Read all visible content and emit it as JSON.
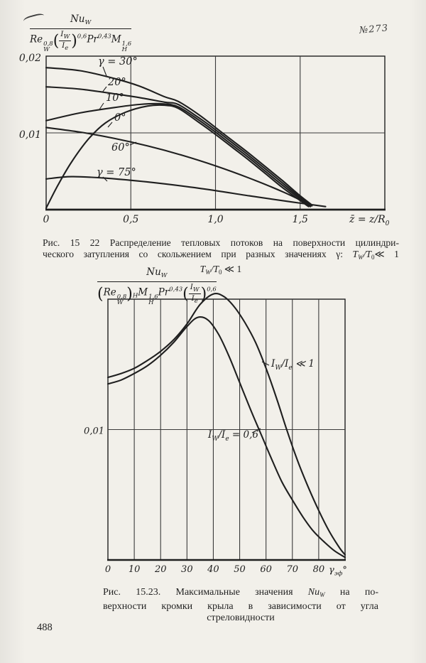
{
  "page": {
    "number": "488",
    "handwritten_annotation": "№273"
  },
  "formulas": {
    "f1": {
      "num_base": "Nu",
      "num_sub": "W",
      "den": {
        "re_base": "Re",
        "re_sup": "0,8",
        "re_sub": "W",
        "lp": "(",
        "frac_num_base": "I",
        "frac_num_sub": "W",
        "frac_den_base": "I",
        "frac_den_sub": "e",
        "rp": ")",
        "frac_sup": "0,6",
        "pr_base": "Pr",
        "pr_sup": "0,43",
        "m_base": "M",
        "m_sup": "1,6",
        "m_sub": "H"
      }
    },
    "f2": {
      "num_base": "Nu",
      "num_sub": "W",
      "den": {
        "lp": "(",
        "re_base": "Re",
        "re_sup": "0,8",
        "re_sub": "W",
        "rp": ")",
        "outer_sub": "H",
        "m_base": "M",
        "m_sup": "1,6",
        "m_sub": "H",
        "pr_base": "Pr",
        "pr_sup": "0,43",
        "lp2": "(",
        "frac_num_base": "I",
        "frac_num_sub": "W",
        "frac_den_base": "I",
        "frac_den_sub": "e",
        "rp2": ")",
        "frac_sup": "0,6"
      }
    }
  },
  "captions": {
    "fig1": {
      "lines": [
        {
          "parts": [
            {
              "t": "Рис. 15 22  Распределение тепловых потоков на поверхности цилиндри-"
            }
          ]
        },
        {
          "parts": [
            {
              "t": "ческого затупления со скольжением при разных значениях γ: "
            },
            {
              "t": "T",
              "i": true
            },
            {
              "t": "W",
              "sub": true,
              "i": true
            },
            {
              "t": "/",
              "i": true
            },
            {
              "t": "T",
              "i": true
            },
            {
              "t": "0",
              "sub": true
            },
            {
              "t": "≪ 1"
            }
          ]
        },
        {
          "parts": [
            {
              "t": "T",
              "i": true
            },
            {
              "t": "W",
              "sub": true,
              "i": true
            },
            {
              "t": "/",
              "i": true
            },
            {
              "t": "T",
              "i": true
            },
            {
              "t": "0",
              "sub": true
            },
            {
              "t": " ≪ 1"
            }
          ]
        }
      ]
    },
    "fig2": {
      "lines": [
        {
          "parts": [
            {
              "t": "Рис. 15.23. Максимальные  значения "
            },
            {
              "t": "Nu",
              "i": true
            },
            {
              "t": "W",
              "sub": true,
              "i": true
            },
            {
              "t": " на по-"
            }
          ]
        },
        {
          "parts": [
            {
              "t": "верхности кромки крыла в  зависимости  от угла"
            }
          ]
        },
        {
          "parts": [
            {
              "t": "стреловидности"
            }
          ]
        }
      ]
    }
  },
  "chart_data": [
    {
      "type": "line",
      "title": "Распределение тепловых потоков на поверхности цилиндрического затупления со скольжением при разных значениях γ",
      "ylabel_formula": "Nu_W / (Re_W^0,8 · (I_W/I_e)^0,6 · Pr^0,43 · M_H^1,6)",
      "xlabel_parts": [
        {
          "t": "z̄ = z/R"
        },
        {
          "t": "0",
          "sub": true
        }
      ],
      "xlim": [
        0,
        2.0
      ],
      "ylim": [
        0,
        0.02
      ],
      "grid": true,
      "grid_x": [
        0.5,
        1.0,
        1.5
      ],
      "grid_y": [
        0.01
      ],
      "xticks": [
        {
          "v": 0,
          "label": "0"
        },
        {
          "v": 0.5,
          "label": "0,5"
        },
        {
          "v": 1.0,
          "label": "1,0"
        },
        {
          "v": 1.5,
          "label": "1,5"
        }
      ],
      "yticks": [
        {
          "v": 0.02,
          "label": "0,02"
        },
        {
          "v": 0.01,
          "label": "0,01"
        }
      ],
      "legend": "labels on curves",
      "series": [
        {
          "name": "γ = 30°",
          "label_parts": [
            {
              "t": "γ = 30°"
            }
          ],
          "points": [
            [
              0,
              0.0185
            ],
            [
              0.2,
              0.0181
            ],
            [
              0.4,
              0.0171
            ],
            [
              0.55,
              0.0161
            ],
            [
              0.7,
              0.0147
            ],
            [
              0.78,
              0.0141
            ],
            [
              0.9,
              0.0124
            ],
            [
              1.0,
              0.0107
            ],
            [
              1.1,
              0.009
            ],
            [
              1.2,
              0.0073
            ],
            [
              1.3,
              0.0055
            ],
            [
              1.4,
              0.0037
            ],
            [
              1.5,
              0.0018
            ],
            [
              1.57,
              0.0006
            ]
          ]
        },
        {
          "name": "20°",
          "label_parts": [
            {
              "t": "20°"
            }
          ],
          "points": [
            [
              0,
              0.016
            ],
            [
              0.2,
              0.0157
            ],
            [
              0.4,
              0.0151
            ],
            [
              0.55,
              0.0146
            ],
            [
              0.7,
              0.014
            ],
            [
              0.78,
              0.0137
            ],
            [
              0.9,
              0.012
            ],
            [
              1.0,
              0.0104
            ],
            [
              1.1,
              0.0087
            ],
            [
              1.2,
              0.007
            ],
            [
              1.3,
              0.0052
            ],
            [
              1.4,
              0.0034
            ],
            [
              1.5,
              0.0016
            ],
            [
              1.565,
              0.0005
            ]
          ]
        },
        {
          "name": "10°",
          "label_parts": [
            {
              "t": "10°"
            }
          ],
          "points": [
            [
              0,
              0.0116
            ],
            [
              0.2,
              0.0126
            ],
            [
              0.4,
              0.0133
            ],
            [
              0.55,
              0.0137
            ],
            [
              0.68,
              0.0138
            ],
            [
              0.78,
              0.0134
            ],
            [
              0.9,
              0.0117
            ],
            [
              1.0,
              0.0101
            ],
            [
              1.1,
              0.0084
            ],
            [
              1.2,
              0.0067
            ],
            [
              1.3,
              0.0049
            ],
            [
              1.4,
              0.0031
            ],
            [
              1.5,
              0.0014
            ],
            [
              1.56,
              0.0004
            ]
          ]
        },
        {
          "name": "0°",
          "label_parts": [
            {
              "t": "0°"
            }
          ],
          "points": [
            [
              0,
              0.0002
            ],
            [
              0.07,
              0.0032
            ],
            [
              0.15,
              0.0062
            ],
            [
              0.25,
              0.0092
            ],
            [
              0.35,
              0.0113
            ],
            [
              0.47,
              0.0127
            ],
            [
              0.6,
              0.0135
            ],
            [
              0.7,
              0.0136
            ],
            [
              0.78,
              0.0132
            ],
            [
              0.9,
              0.0114
            ],
            [
              1.0,
              0.0098
            ],
            [
              1.1,
              0.0081
            ],
            [
              1.2,
              0.0064
            ],
            [
              1.3,
              0.0046
            ],
            [
              1.4,
              0.0028
            ],
            [
              1.55,
              0.0004
            ]
          ]
        },
        {
          "name": "60°",
          "label_parts": [
            {
              "t": "60°"
            }
          ],
          "points": [
            [
              0,
              0.0107
            ],
            [
              0.2,
              0.0101
            ],
            [
              0.4,
              0.0093
            ],
            [
              0.6,
              0.0083
            ],
            [
              0.8,
              0.0071
            ],
            [
              1.0,
              0.0057
            ],
            [
              1.2,
              0.0041
            ],
            [
              1.4,
              0.0023
            ],
            [
              1.57,
              0.0005
            ]
          ]
        },
        {
          "name": "γ = 75°",
          "label_parts": [
            {
              "t": "γ = 75°"
            }
          ],
          "points": [
            [
              0,
              0.004
            ],
            [
              0.15,
              0.0043
            ],
            [
              0.35,
              0.0041
            ],
            [
              0.6,
              0.0036
            ],
            [
              0.9,
              0.0028
            ],
            [
              1.2,
              0.0018
            ],
            [
              1.45,
              0.001
            ],
            [
              1.65,
              0.0004
            ]
          ]
        }
      ]
    },
    {
      "type": "line",
      "title": "Максимальные значения Nu_W на поверхности кромки крыла в зависимости от угла стреловидности",
      "ylabel_formula": "Nu_W / ((Re_W^0,8)_H · M_H^1,6 · Pr^0,43 · (I_W/I_e)^0,6)",
      "xlabel_parts": [
        {
          "t": "γ"
        },
        {
          "t": "эф",
          "sub": true
        },
        {
          "t": "°"
        }
      ],
      "xlim": [
        0,
        90
      ],
      "ylim": [
        0,
        0.02
      ],
      "grid": true,
      "grid_x": [
        10,
        20,
        30,
        40,
        50,
        60,
        70,
        80
      ],
      "grid_y": [
        0.01
      ],
      "xticks": [
        {
          "v": 0,
          "label": "0"
        },
        {
          "v": 10,
          "label": "10"
        },
        {
          "v": 20,
          "label": "20"
        },
        {
          "v": 30,
          "label": "30"
        },
        {
          "v": 40,
          "label": "40"
        },
        {
          "v": 50,
          "label": "50"
        },
        {
          "v": 60,
          "label": "60"
        },
        {
          "v": 70,
          "label": "70"
        },
        {
          "v": 80,
          "label": "80"
        }
      ],
      "yticks": [
        {
          "v": 0.01,
          "label": "0,01"
        }
      ],
      "legend": "labels on curves",
      "series": [
        {
          "name": "I_W/I_e ≪ 1",
          "label_parts": [
            {
              "t": "I"
            },
            {
              "t": "W",
              "sub": true
            },
            {
              "t": "/I"
            },
            {
              "t": "e",
              "sub": true
            },
            {
              "t": " ≪ 1"
            }
          ],
          "points": [
            [
              0,
              0.014
            ],
            [
              5,
              0.0143
            ],
            [
              10,
              0.0147
            ],
            [
              15,
              0.0153
            ],
            [
              20,
              0.016
            ],
            [
              25,
              0.0169
            ],
            [
              30,
              0.0181
            ],
            [
              35,
              0.0196
            ],
            [
              40,
              0.0204
            ],
            [
              44,
              0.0202
            ],
            [
              48,
              0.0194
            ],
            [
              52,
              0.0182
            ],
            [
              56,
              0.0167
            ],
            [
              60,
              0.0147
            ],
            [
              64,
              0.0124
            ],
            [
              68,
              0.0099
            ],
            [
              72,
              0.0076
            ],
            [
              76,
              0.0056
            ],
            [
              80,
              0.0038
            ],
            [
              84,
              0.0022
            ],
            [
              88,
              0.0009
            ],
            [
              90,
              0.0004
            ]
          ]
        },
        {
          "name": "I_W/I_e = 0,6",
          "label_parts": [
            {
              "t": "I"
            },
            {
              "t": "W",
              "sub": true
            },
            {
              "t": "/I"
            },
            {
              "t": "e",
              "sub": true
            },
            {
              "t": " = 0,6"
            }
          ],
          "points": [
            [
              0,
              0.0135
            ],
            [
              5,
              0.0138
            ],
            [
              10,
              0.0143
            ],
            [
              15,
              0.0149
            ],
            [
              20,
              0.0157
            ],
            [
              25,
              0.0167
            ],
            [
              30,
              0.0179
            ],
            [
              34,
              0.0186
            ],
            [
              38,
              0.0184
            ],
            [
              42,
              0.0173
            ],
            [
              46,
              0.0156
            ],
            [
              50,
              0.0136
            ],
            [
              54,
              0.0116
            ],
            [
              58,
              0.0097
            ],
            [
              62,
              0.0078
            ],
            [
              66,
              0.006
            ],
            [
              70,
              0.0046
            ],
            [
              74,
              0.0033
            ],
            [
              78,
              0.0022
            ],
            [
              82,
              0.0014
            ],
            [
              86,
              0.0007
            ],
            [
              90,
              0.0002
            ]
          ]
        }
      ]
    }
  ]
}
